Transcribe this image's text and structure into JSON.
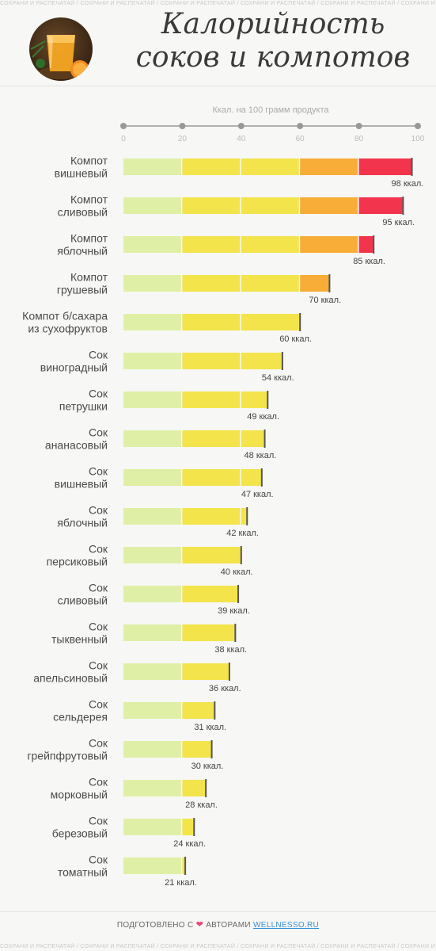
{
  "watermark_text": "СОХРАНИ И РАСПЕЧАТАЙ / СОХРАНИ И РАСПЕЧАТАЙ / СОХРАНИ И РАСПЕЧАТАЙ / СОХРАНИ И РАСПЕЧАТАЙ / СОХРАНИ И РАСПЕЧАТАЙ / СОХРАНИ И РАСПЕЧАТАЙ / СОХРАНИ И РАСПЕЧАТАЙ",
  "header": {
    "title_line1": "Калорийность",
    "title_line2": "соков и компотов"
  },
  "footer": {
    "prefix": "ПОДГОТОВЛЕНО С",
    "middle": "АВТОРАМИ",
    "brand": "WELLNESSO.RU"
  },
  "colors": {
    "segment_0_20": "#dff0a6",
    "segment_20_40": "#f2e44a",
    "segment_40_60": "#f2e44a",
    "segment_60_80": "#f7ad37",
    "segment_80_100": "#f2354c",
    "axis": "#999999",
    "heart": "#e8457b",
    "brand_link": "#3a8fd8"
  },
  "chart_data": {
    "type": "bar",
    "orientation": "horizontal",
    "xlabel": "Ккал. на 100 грамм продукта",
    "xlim": [
      0,
      100
    ],
    "xticks": [
      0,
      20,
      40,
      60,
      80,
      100
    ],
    "value_suffix": " ккал.",
    "last_value_suffix": " ккал.",
    "categories": [
      [
        "Компот",
        "вишневый"
      ],
      [
        "Компот",
        "сливовый"
      ],
      [
        "Компот",
        "яблочный"
      ],
      [
        "Компот",
        "грушевый"
      ],
      [
        "Компот б/сахара",
        "из сухофруктов"
      ],
      [
        "Сок",
        "виноградный"
      ],
      [
        "Сок",
        "петрушки"
      ],
      [
        "Сок",
        "ананасовый"
      ],
      [
        "Сок",
        "вишневый"
      ],
      [
        "Сок",
        "яблочный"
      ],
      [
        "Сок",
        "персиковый"
      ],
      [
        "Сок",
        "сливовый"
      ],
      [
        "Сок",
        "тыквенный"
      ],
      [
        "Сок",
        "апельсиновый"
      ],
      [
        "Сок",
        "сельдерея"
      ],
      [
        "Сок",
        "грейпфрутовый"
      ],
      [
        "Сок",
        "морковный"
      ],
      [
        "Сок",
        "березовый"
      ],
      [
        "Сок",
        "томатный"
      ]
    ],
    "values": [
      98,
      95,
      85,
      70,
      60,
      54,
      49,
      48,
      47,
      42,
      40,
      39,
      38,
      36,
      31,
      30,
      28,
      24,
      21
    ],
    "value_labels": [
      "98 ккал.",
      "95 ккал.",
      "85 ккал.",
      "70 ккал.",
      "60 ккал.",
      "54 ккал.",
      "49 ккал.",
      "48 ккал.",
      "47 ккал.",
      "42 ккал.",
      "40 ккал.",
      "39 ккал.",
      "38 ккал.",
      "36 ккал.",
      "31 ккал.",
      "30 ккал.",
      "28 ккал.",
      "24 ккал.",
      "21 ккал."
    ]
  }
}
